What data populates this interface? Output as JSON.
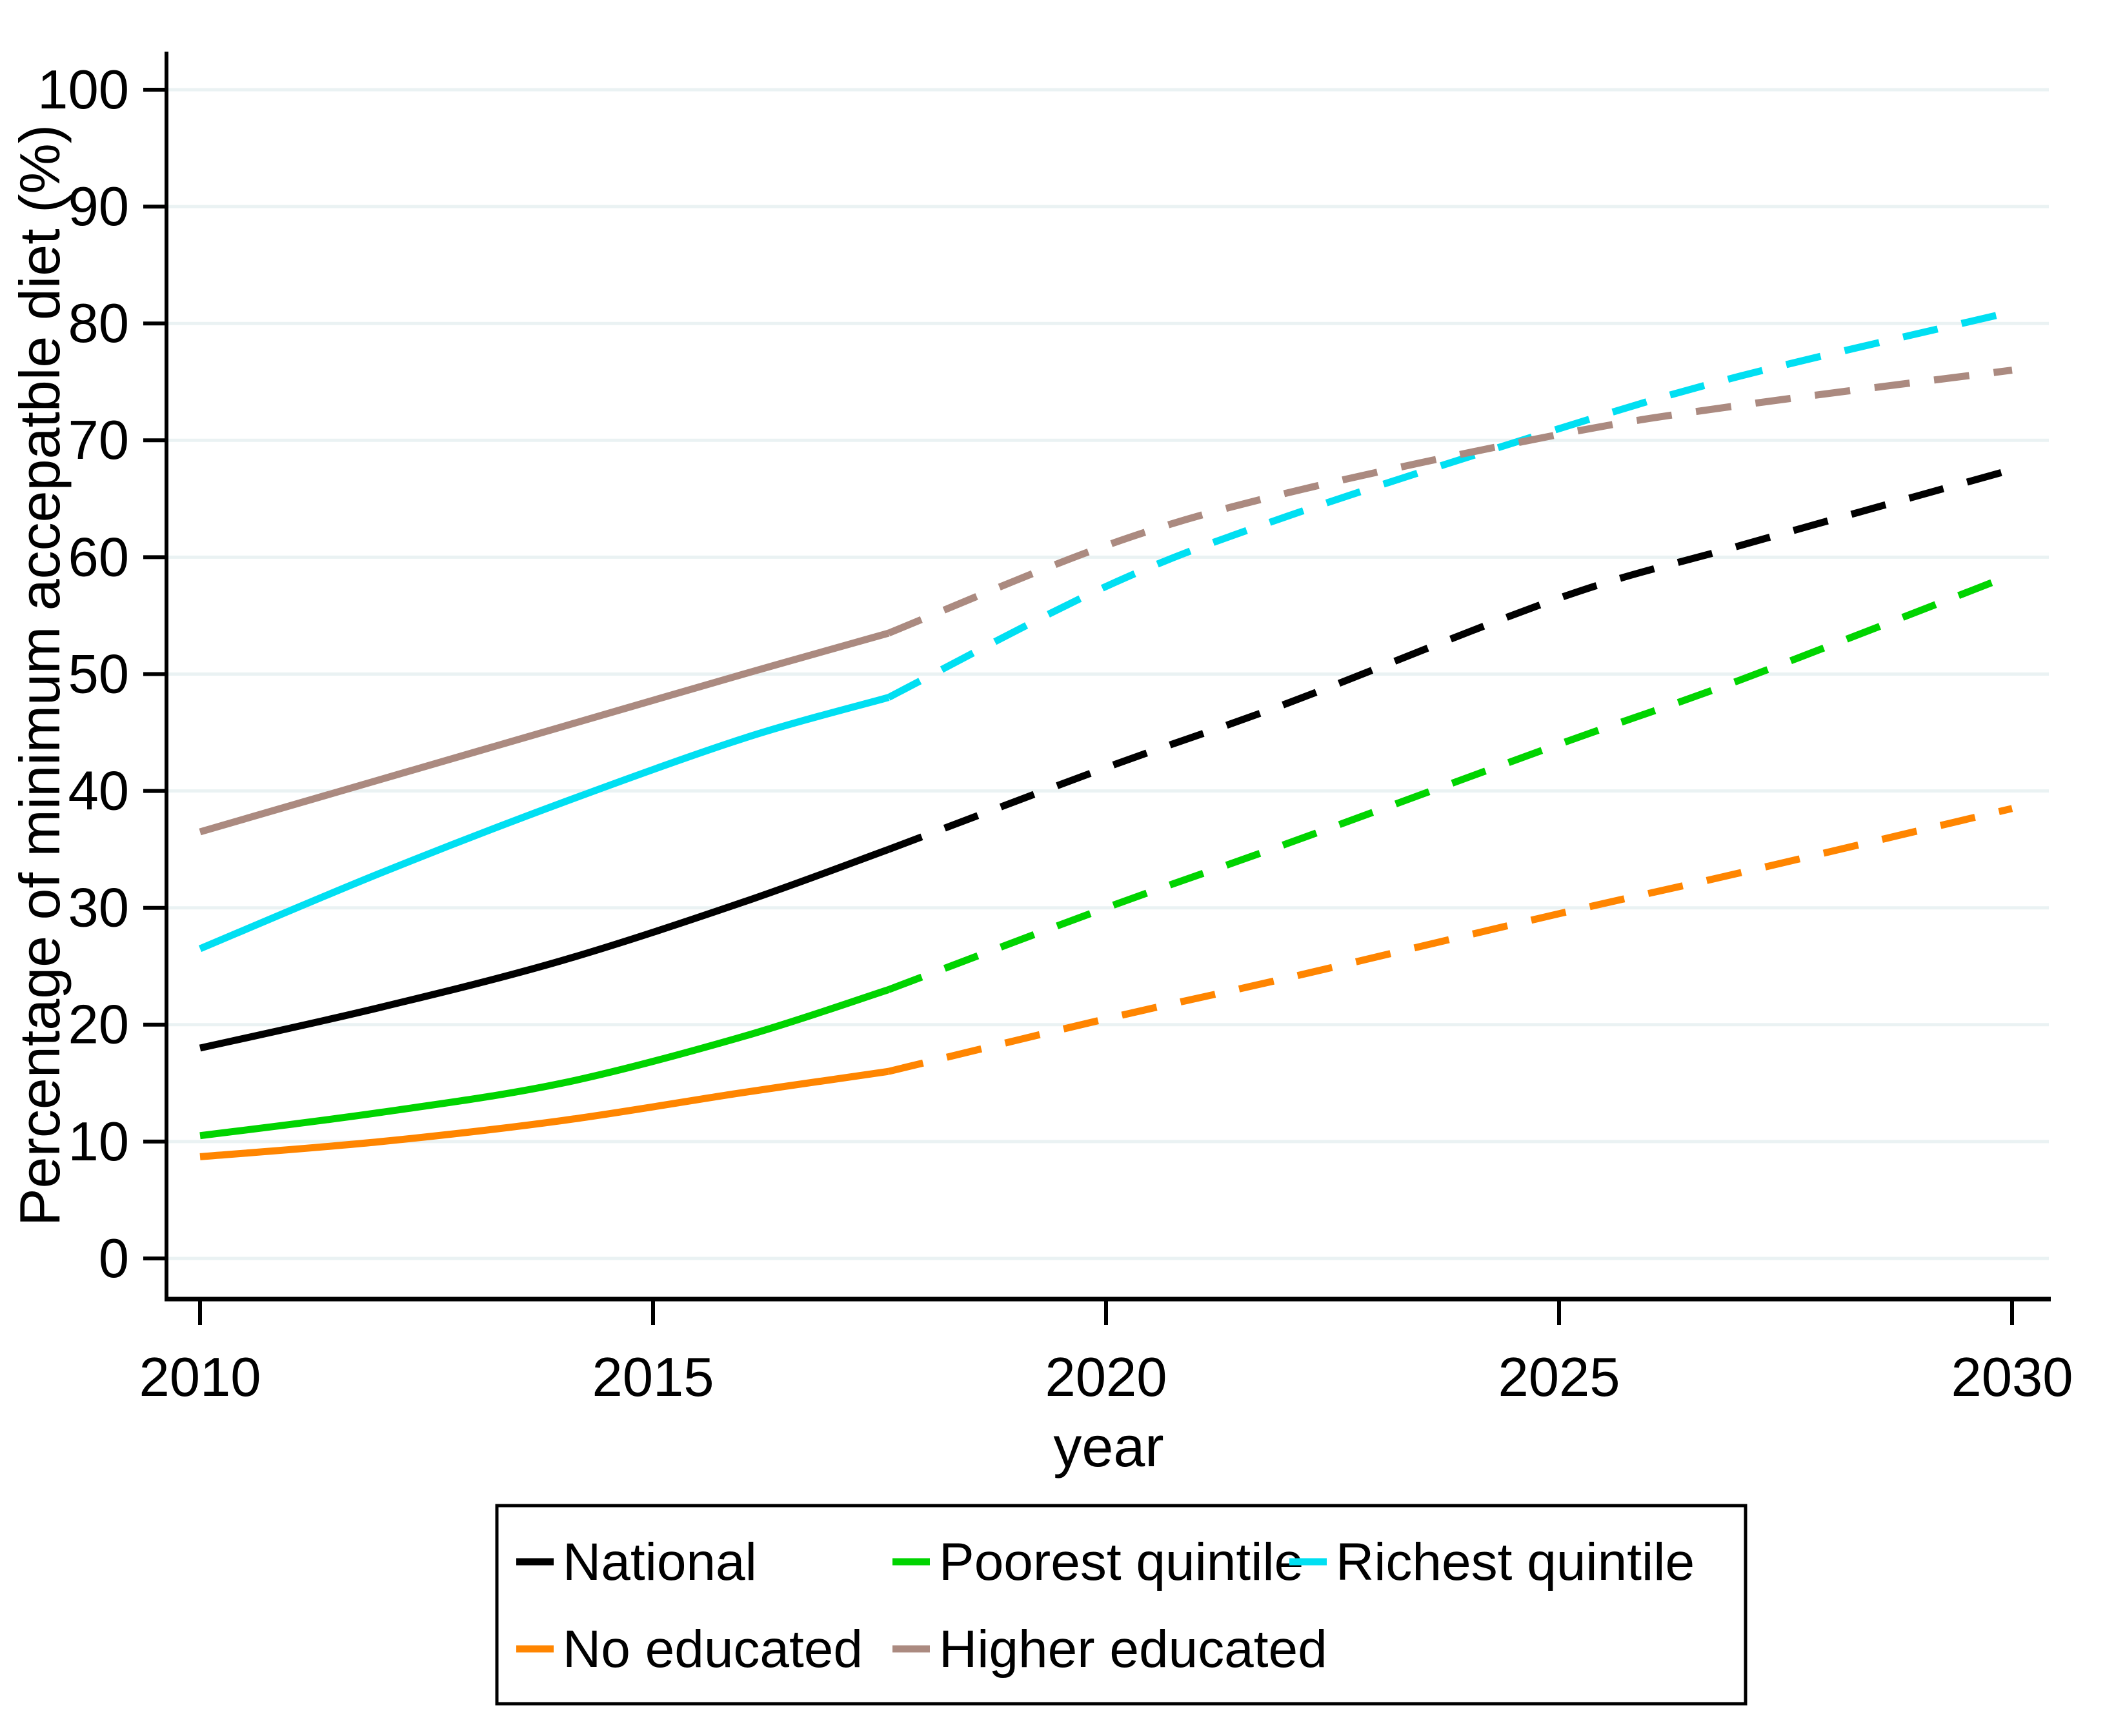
{
  "chart_data": {
    "type": "line",
    "title": "",
    "xlabel": "year",
    "ylabel": "Percentage of minimum accepatble diet (%)",
    "x_range": [
      2010,
      2030
    ],
    "y_range": [
      0,
      100
    ],
    "x_ticks": [
      2010,
      2015,
      2020,
      2025,
      2030
    ],
    "y_ticks": [
      0,
      10,
      20,
      30,
      40,
      50,
      60,
      70,
      80,
      90,
      100
    ],
    "grid": "horizontal",
    "gridline_color": "#eaf2f3",
    "background_color": "#ffffff",
    "axis_color": "#000000",
    "years": [
      2010,
      2012,
      2014,
      2016,
      2017.6,
      2020,
      2022,
      2025,
      2027,
      2030
    ],
    "dash_from_index": 4,
    "dash_note": "solid observed data until ~2017.6, dashed projection afterwards",
    "series": [
      {
        "name": "National",
        "color": "#000000",
        "values": [
          18.0,
          21.5,
          25.5,
          30.5,
          35.0,
          42.0,
          47.5,
          56.5,
          61.0,
          67.5
        ]
      },
      {
        "name": "Poorest quintile",
        "color": "#00d400",
        "values": [
          10.5,
          12.5,
          15.0,
          19.0,
          23.0,
          30.0,
          35.5,
          44.0,
          49.5,
          58.5
        ]
      },
      {
        "name": "Richest quintile",
        "color": "#00dff2",
        "values": [
          26.5,
          33.0,
          39.0,
          44.5,
          48.0,
          57.5,
          63.5,
          71.0,
          75.5,
          81.0
        ]
      },
      {
        "name": "No educated",
        "color": "#ff8500",
        "values": [
          8.7,
          10.0,
          11.8,
          14.2,
          16.0,
          20.5,
          24.0,
          29.5,
          33.0,
          38.5
        ]
      },
      {
        "name": "Higher educated",
        "color": "#ab8a80",
        "values": [
          36.5,
          41.0,
          45.5,
          50.0,
          53.5,
          61.0,
          65.5,
          70.5,
          73.0,
          76.0
        ]
      }
    ],
    "legend": {
      "position": "bottom",
      "columns": 3,
      "entries": [
        "National",
        "Poorest quintile",
        "Richest quintile",
        "No educated",
        "Higher educated"
      ]
    }
  }
}
